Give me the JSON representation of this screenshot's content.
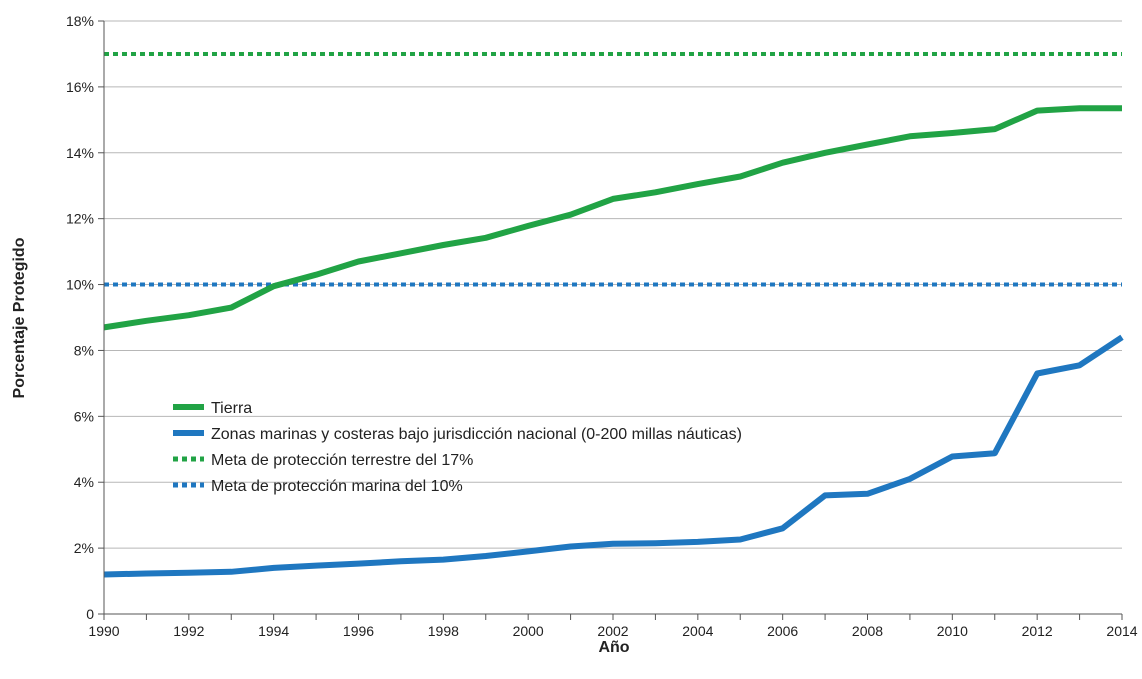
{
  "chart_data": {
    "type": "line",
    "title": "",
    "xlabel": "Año",
    "ylabel": "Porcentaje Protegido",
    "xlim": [
      1990,
      2014
    ],
    "ylim": [
      0,
      18
    ],
    "x_ticks": [
      1990,
      1992,
      1994,
      1996,
      1998,
      2000,
      2002,
      2004,
      2006,
      2008,
      2010,
      2012,
      2014
    ],
    "y_ticks": [
      {
        "value": 0,
        "label": "0"
      },
      {
        "value": 2,
        "label": "2%"
      },
      {
        "value": 4,
        "label": "4%"
      },
      {
        "value": 6,
        "label": "6%"
      },
      {
        "value": 8,
        "label": "8%"
      },
      {
        "value": 10,
        "label": "10%"
      },
      {
        "value": 12,
        "label": "12%"
      },
      {
        "value": 14,
        "label": "14%"
      },
      {
        "value": 16,
        "label": "16%"
      },
      {
        "value": 18,
        "label": "18%"
      }
    ],
    "grid": "horizontal",
    "legend_position": "center-left",
    "x": [
      1990,
      1991,
      1992,
      1993,
      1994,
      1995,
      1996,
      1997,
      1998,
      1999,
      2000,
      2001,
      2002,
      2003,
      2004,
      2005,
      2006,
      2007,
      2008,
      2009,
      2010,
      2011,
      2012,
      2013,
      2014
    ],
    "series": [
      {
        "name": "Tierra",
        "color": "#21a345",
        "style": "solid",
        "values": [
          8.7,
          8.9,
          9.07,
          9.3,
          9.95,
          10.3,
          10.7,
          10.95,
          11.2,
          11.42,
          11.78,
          12.12,
          12.6,
          12.8,
          13.05,
          13.28,
          13.7,
          14.0,
          14.25,
          14.5,
          14.6,
          14.72,
          15.28,
          15.35,
          15.35
        ]
      },
      {
        "name": "Zonas marinas y costeras bajo jurisdicción nacional (0-200 millas náuticas)",
        "color": "#1f77c0",
        "style": "solid",
        "values": [
          1.2,
          1.23,
          1.25,
          1.28,
          1.4,
          1.47,
          1.53,
          1.6,
          1.65,
          1.76,
          1.9,
          2.05,
          2.13,
          2.15,
          2.19,
          2.26,
          2.6,
          3.6,
          3.65,
          4.1,
          4.78,
          4.88,
          7.3,
          7.55,
          8.4
        ]
      },
      {
        "name": "Meta de protección terrestre del 17%",
        "color": "#21a345",
        "style": "dotted",
        "constant": 17
      },
      {
        "name": "Meta de protección marina del 10%",
        "color": "#1f77c0",
        "style": "dotted",
        "constant": 10
      }
    ]
  }
}
